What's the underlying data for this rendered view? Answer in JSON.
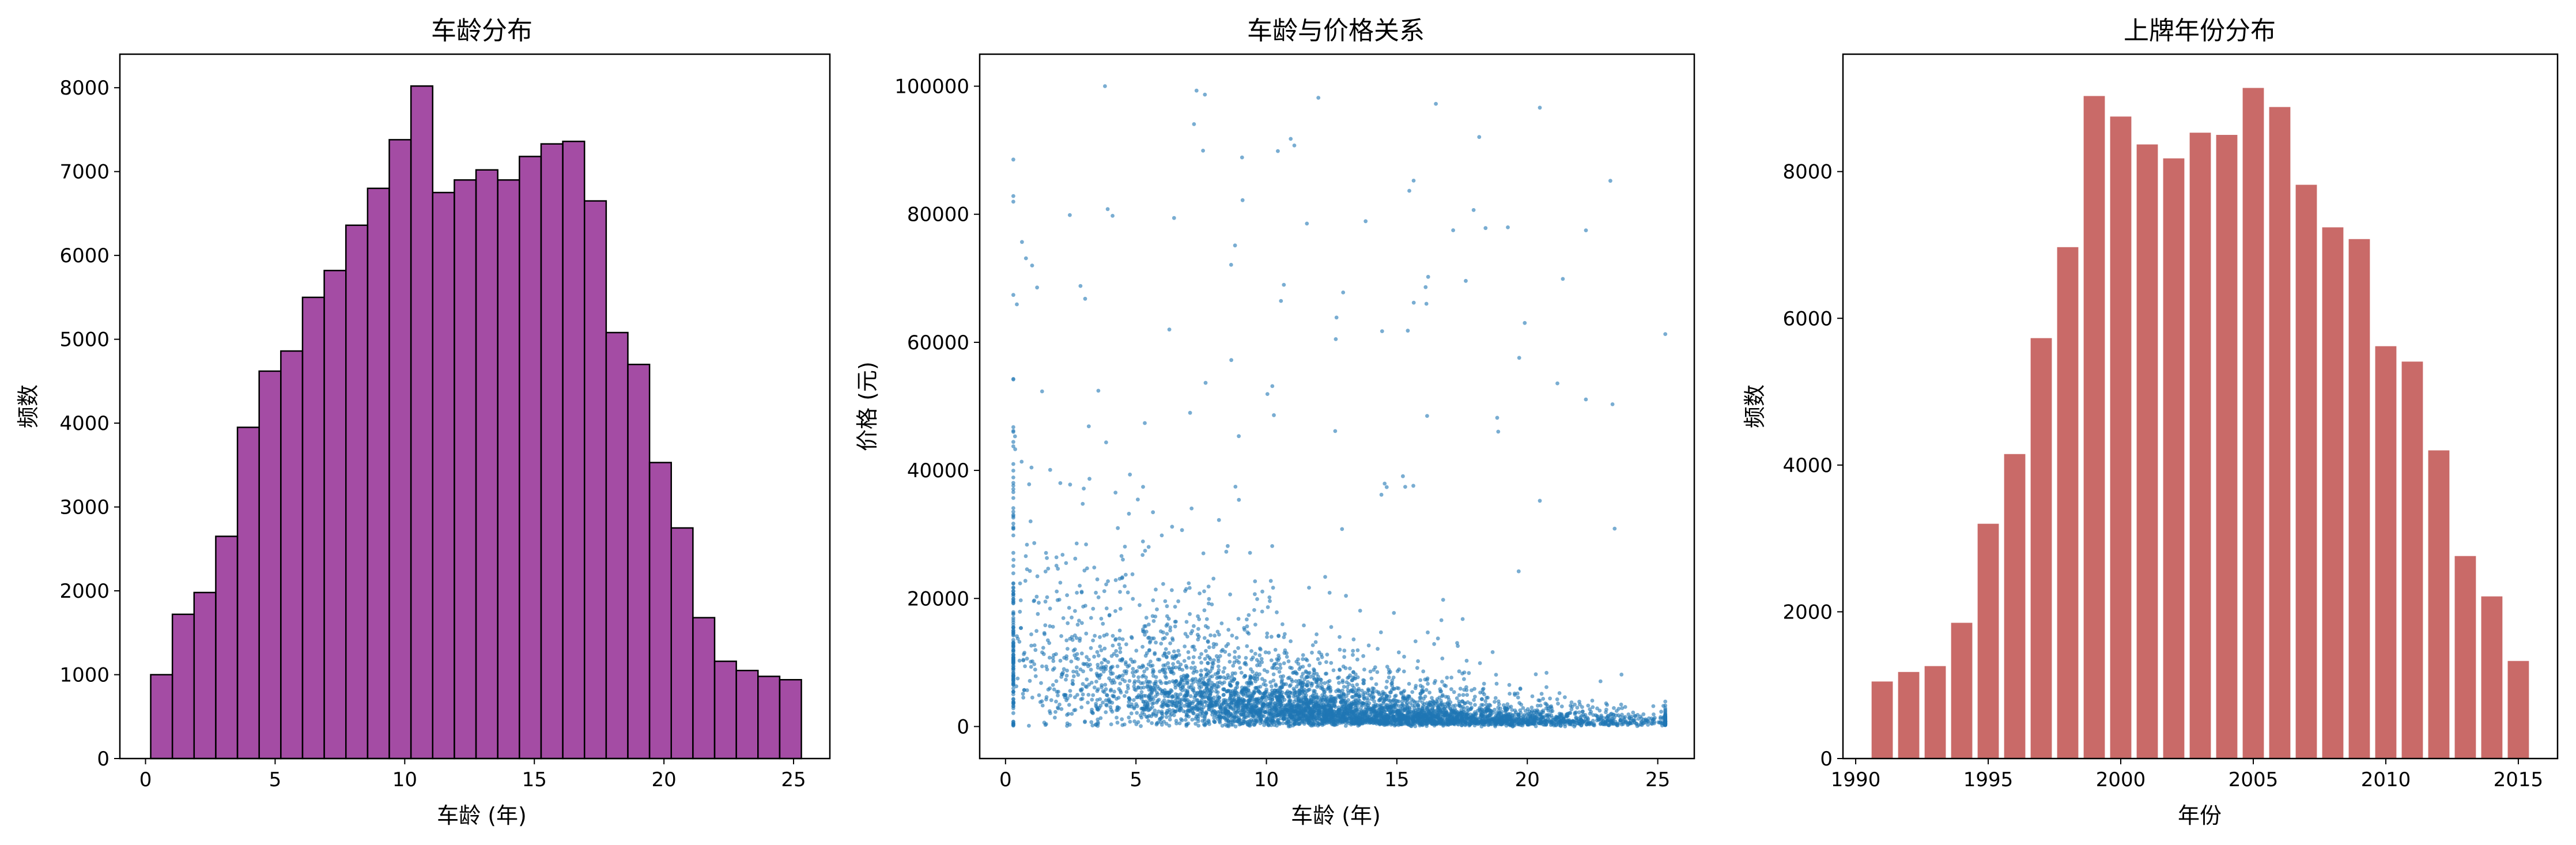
{
  "chart_data": [
    {
      "type": "bar",
      "subtype": "histogram",
      "title": "车龄分布",
      "xlabel": "车龄 (年)",
      "ylabel": "频数",
      "color": "#8b1a8b",
      "edge_color": "#000000",
      "xlim": [
        -0.99,
        26.4
      ],
      "ylim": [
        0,
        8400
      ],
      "xticks": [
        0,
        5,
        10,
        15,
        20,
        25
      ],
      "yticks": [
        0,
        1000,
        2000,
        3000,
        4000,
        5000,
        6000,
        7000,
        8000
      ],
      "bin_start": 0.2,
      "bin_width": 0.8367,
      "values": [
        1000,
        1720,
        1980,
        2650,
        3950,
        4620,
        4860,
        5500,
        5820,
        6360,
        6800,
        7380,
        8020,
        6750,
        6900,
        7020,
        6900,
        7180,
        7330,
        7360,
        6650,
        5080,
        4700,
        3530,
        2750,
        1680,
        1160,
        1050,
        980,
        940
      ]
    },
    {
      "type": "scatter",
      "title": "车龄与价格关系",
      "xlabel": "车龄 (年)",
      "ylabel": "价格 (元)",
      "color": "#1f77b4",
      "xlim": [
        -0.99,
        26.4
      ],
      "ylim": [
        -5000,
        105000
      ],
      "xticks": [
        0,
        5,
        10,
        15,
        20,
        25
      ],
      "yticks": [
        0,
        20000,
        40000,
        60000,
        80000,
        100000
      ],
      "x_range": [
        0.3,
        25.3
      ],
      "y_range": [
        0,
        100000
      ],
      "trend": "price decays with age: dense band ~5000-40000 at age 0-5, concentrated near 0-5000 beyond age 15, sparse outliers up to 100000"
    },
    {
      "type": "bar",
      "title": "上牌年份分布",
      "xlabel": "年份",
      "ylabel": "频数",
      "color": "#c0504d",
      "xlim": [
        1989.52,
        2016.48
      ],
      "ylim": [
        0,
        9600
      ],
      "xticks": [
        1990,
        1995,
        2000,
        2005,
        2010,
        2015
      ],
      "yticks": [
        0,
        2000,
        4000,
        6000,
        8000
      ],
      "categories": [
        1991,
        1992,
        1993,
        1994,
        1995,
        1996,
        1997,
        1998,
        1999,
        2000,
        2001,
        2002,
        2003,
        2004,
        2005,
        2006,
        2007,
        2008,
        2009,
        2010,
        2011,
        2012,
        2013,
        2014,
        2015
      ],
      "values": [
        1050,
        1180,
        1260,
        1850,
        3200,
        4150,
        5730,
        6970,
        9030,
        8750,
        8370,
        8180,
        8530,
        8500,
        9140,
        8880,
        7820,
        7240,
        7080,
        5620,
        5410,
        4200,
        2760,
        2210,
        1330
      ]
    }
  ]
}
